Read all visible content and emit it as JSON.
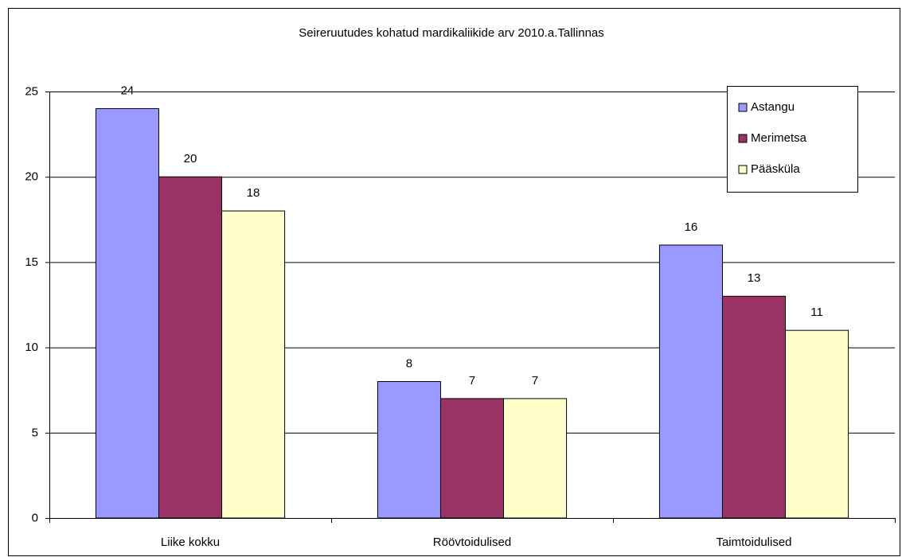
{
  "chart_data": {
    "type": "bar",
    "title": "Seireruutudes kohatud mardikaliikide arv 2010.a.Tallinnas",
    "categories": [
      "Liike kokku",
      "Röövtoidulised",
      "Taimtoidulised"
    ],
    "series": [
      {
        "name": "Astangu",
        "color": "#9999ff",
        "values": [
          24,
          8,
          16
        ]
      },
      {
        "name": "Merimetsa",
        "color": "#993366",
        "values": [
          20,
          7,
          13
        ]
      },
      {
        "name": "Pääsküla",
        "color": "#ffffcc",
        "values": [
          18,
          7,
          11
        ]
      }
    ],
    "ylim": [
      0,
      25
    ],
    "yticks": [
      0,
      5,
      10,
      15,
      20,
      25
    ],
    "grid": true,
    "legend": "top-right"
  }
}
